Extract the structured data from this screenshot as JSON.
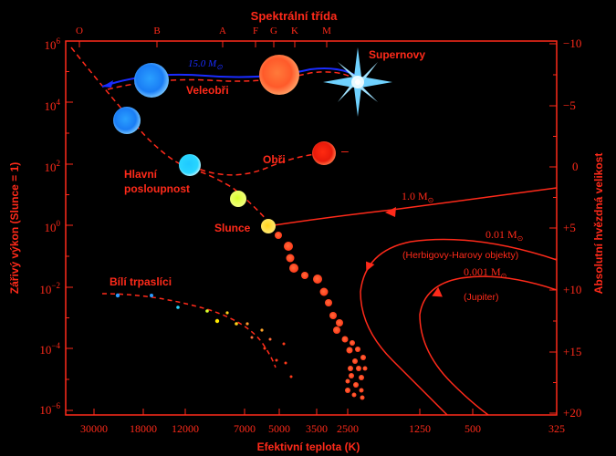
{
  "titles": {
    "top_axis": "Spektrální třída",
    "bottom_axis": "Efektivní teplota (K)",
    "left_axis": "Zářivý výkon (Slunce = 1)",
    "right_axis": "Absolutní hvězdná velikost"
  },
  "spectral_classes": [
    "O",
    "B",
    "A",
    "F",
    "G",
    "K",
    "M"
  ],
  "temperature_ticks": [
    "30000",
    "18000",
    "12000",
    "7000",
    "5000",
    "3500",
    "2500",
    "1250",
    "500",
    "325"
  ],
  "luminosity_ticks": [
    {
      "base": "10",
      "exp": "6"
    },
    {
      "base": "10",
      "exp": "4"
    },
    {
      "base": "10",
      "exp": "2"
    },
    {
      "base": "10",
      "exp": "0"
    },
    {
      "base": "10",
      "exp": "−2"
    },
    {
      "base": "10",
      "exp": "−4"
    },
    {
      "base": "10",
      "exp": "−6"
    }
  ],
  "magnitude_ticks": [
    "−10",
    "−5",
    "0",
    "+5",
    "+10",
    "+15",
    "+20"
  ],
  "labels": {
    "supernovae": "Supernovy",
    "supergiants": "Veleobři",
    "giants": "Obři",
    "main_sequence_1": "Hlavní",
    "main_sequence_2": "posloupnost",
    "sun": "Slunce",
    "white_dwarfs": "Bílí trpaslíci",
    "track_15": "15.0 M",
    "track_1": "1.0 M",
    "track_001": "0.01 M",
    "track_001_note": "(Herbigovy-Harovy objekty)",
    "track_0001": "0.001 M",
    "track_0001_note": "(Jupiter)",
    "solar_symbol": "⊙",
    "giant_dash": "–"
  },
  "colors": {
    "axis": "#ff2a1a",
    "track_blue": "#1a2cff",
    "background": "#000000"
  }
}
